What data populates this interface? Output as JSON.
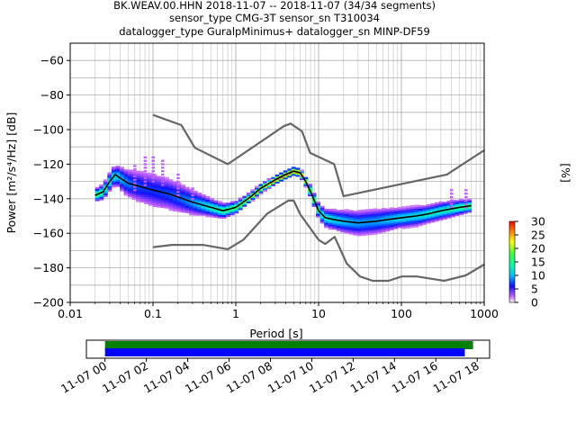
{
  "title_lines": [
    "BK.WEAV.00.HHN   2018-11-07 -- 2018-11-07  (34/34 segments)",
    "sensor_type CMG-3T sensor_sn T310034",
    "datalogger_type GuralpMinimus+ datalogger_sn MINP-DF59"
  ],
  "colorbar": {
    "label": "[%]",
    "ticks": [
      "0",
      "5",
      "10",
      "15",
      "20",
      "25",
      "30"
    ],
    "range": [
      0,
      30
    ]
  },
  "timeline": {
    "tick_labels": [
      "11-07 00",
      "11-07 02",
      "11-07 04",
      "11-07 06",
      "11-07 08",
      "11-07 10",
      "11-07 12",
      "11-07 14",
      "11-07 16",
      "11-07 18"
    ],
    "range_hours": [
      -0.9,
      18.6
    ],
    "bars": [
      {
        "color": "#008000",
        "start_hours": 0.0,
        "end_hours": 17.8
      },
      {
        "color": "#0000ff",
        "start_hours": 0.0,
        "end_hours": 17.4
      }
    ]
  },
  "chart_data": {
    "type": "heatmap",
    "xlabel": "Period [s]",
    "ylabel": "Power [m²/s⁴/Hz] [dB]",
    "x_scale": "log",
    "xlim": [
      0.01,
      1000
    ],
    "ylim": [
      -200,
      -50
    ],
    "x_tick_labels": [
      "0.01",
      "0.1",
      "1",
      "10",
      "100",
      "1000"
    ],
    "y_tick_labels": [
      "-200",
      "-180",
      "-160",
      "-140",
      "-120",
      "-100",
      "-80",
      "-60"
    ],
    "grid": true,
    "nhnm": {
      "period": [
        0.1,
        0.22,
        0.32,
        0.8,
        3.8,
        4.6,
        6.3,
        7.9,
        15.4,
        20,
        354.8,
        1000
      ],
      "db": [
        -91.5,
        -97.4,
        -110.5,
        -120,
        -98,
        -96.5,
        -101,
        -113.5,
        -120,
        -138.5,
        -126,
        -112
      ]
    },
    "nlnm": {
      "period": [
        0.1,
        0.17,
        0.4,
        0.8,
        1.24,
        2.4,
        4.3,
        5,
        6,
        10,
        12,
        15.6,
        21.9,
        31.6,
        45,
        70,
        101,
        154,
        328,
        600,
        1000
      ],
      "db": [
        -168,
        -166.7,
        -166.7,
        -169.2,
        -163.7,
        -148.6,
        -141.1,
        -141.1,
        -149,
        -163.8,
        -166.2,
        -162.1,
        -177.5,
        -185,
        -187.5,
        -187.5,
        -185,
        -185,
        -187.5,
        -184.4,
        -178
      ]
    },
    "mean_curve": {
      "period": [
        0.02,
        0.025,
        0.03,
        0.035,
        0.04,
        0.05,
        0.07,
        0.1,
        0.15,
        0.2,
        0.3,
        0.5,
        0.7,
        1,
        1.5,
        2,
        3,
        4,
        5,
        6,
        7,
        8,
        10,
        12,
        15,
        20,
        30,
        50,
        70,
        100,
        150,
        200,
        300,
        500,
        700
      ],
      "db": [
        -138,
        -136,
        -130,
        -126,
        -128,
        -131,
        -133,
        -135,
        -137,
        -139,
        -142,
        -145,
        -147,
        -145,
        -139,
        -134,
        -129,
        -126,
        -124,
        -125,
        -130,
        -136,
        -147,
        -151,
        -152,
        -153,
        -154,
        -153,
        -152,
        -151,
        -150,
        -149,
        -147,
        -145,
        -144
      ]
    },
    "pdf_band": {
      "period": [
        0.02,
        0.025,
        0.03,
        0.035,
        0.04,
        0.05,
        0.07,
        0.1,
        0.15,
        0.2,
        0.3,
        0.5,
        0.7,
        1,
        1.5,
        2,
        3,
        4,
        5,
        6,
        7,
        8,
        10,
        12,
        15,
        20,
        30,
        50,
        70,
        100,
        150,
        200,
        300,
        500,
        700
      ],
      "spread_db": [
        4,
        5,
        6,
        7,
        8,
        10,
        12,
        13,
        12,
        11,
        9,
        6,
        5,
        4,
        3,
        3,
        2,
        2,
        2,
        2,
        3,
        4,
        5,
        6,
        7,
        8,
        9,
        9,
        8,
        7,
        7,
        6,
        6,
        5,
        4
      ],
      "max_percent": 30
    },
    "outliers": [
      {
        "period": 0.06,
        "db_min": -135,
        "db_max": -120
      },
      {
        "period": 0.08,
        "db_min": -132,
        "db_max": -115
      },
      {
        "period": 0.1,
        "db_min": -130,
        "db_max": -115
      },
      {
        "period": 0.13,
        "db_min": -132,
        "db_max": -118
      },
      {
        "period": 0.2,
        "db_min": -138,
        "db_max": -125
      },
      {
        "period": 0.3,
        "db_min": -142,
        "db_max": -133
      },
      {
        "period": 400,
        "db_min": -145,
        "db_max": -135
      },
      {
        "period": 600,
        "db_min": -145,
        "db_max": -134
      }
    ]
  }
}
